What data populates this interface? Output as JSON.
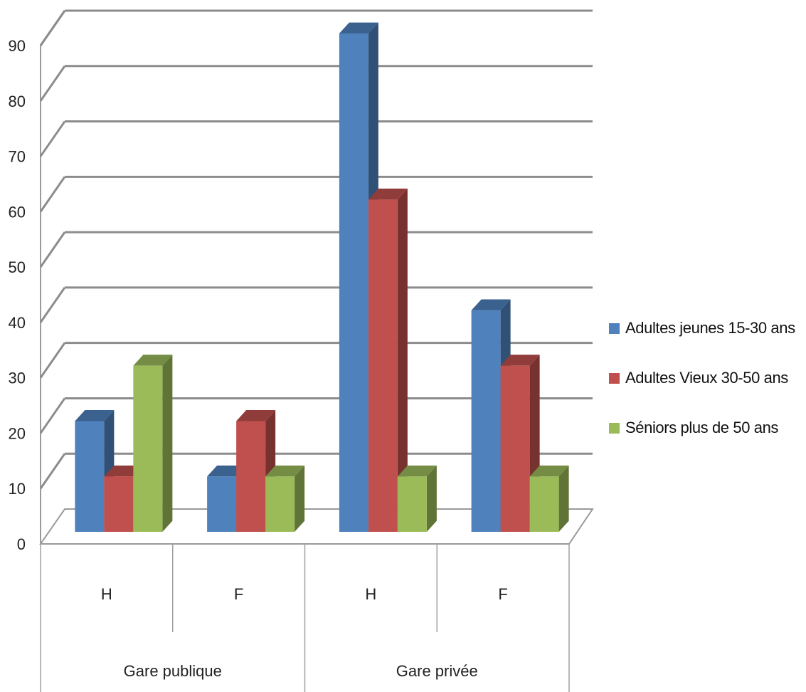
{
  "chart_data": {
    "type": "bar",
    "groups": [
      {
        "label": "Gare publique",
        "categories": [
          "H",
          "F"
        ]
      },
      {
        "label": "Gare privée",
        "categories": [
          "H",
          "F"
        ]
      }
    ],
    "categories": [
      "H",
      "F",
      "H",
      "F"
    ],
    "series": [
      {
        "name": "Adultes jeunes 15-30 ans",
        "color": "#4F81BD",
        "values": [
          20,
          10,
          90,
          40
        ]
      },
      {
        "name": "Adultes Vieux 30-50 ans",
        "color": "#C0504D",
        "values": [
          10,
          20,
          60,
          30
        ]
      },
      {
        "name": "Séniors plus de 50 ans",
        "color": "#9BBB59",
        "values": [
          30,
          10,
          10,
          10
        ]
      }
    ],
    "yticks": [
      "0",
      "10",
      "20",
      "30",
      "40",
      "50",
      "60",
      "70",
      "80",
      "90"
    ],
    "ylim": [
      0,
      90
    ],
    "grid": true,
    "legend_position": "right"
  }
}
